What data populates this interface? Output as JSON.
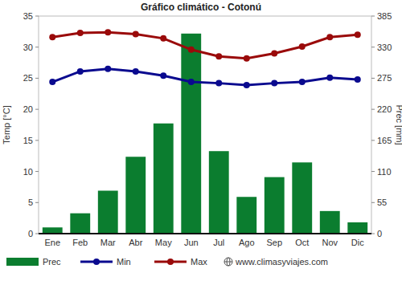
{
  "chart_data": {
    "type": "bar",
    "title": "Gráfico climático - Cotonú",
    "ylabel": "Temp [°C]",
    "y2label": "Prec [mm]",
    "annotations": [
      "www.climasyviajes.com"
    ],
    "categories": [
      "Ene",
      "Feb",
      "Mar",
      "Abr",
      "May",
      "Jun",
      "Jul",
      "Ago",
      "Sep",
      "Oct",
      "Nov",
      "Dic"
    ],
    "series": [
      {
        "name": "Prec",
        "type": "bar",
        "axis": "y2",
        "color": "#0b7d2f",
        "values": [
          11,
          36,
          76,
          136,
          195,
          354,
          146,
          65,
          100,
          126,
          40,
          20
        ]
      },
      {
        "name": "Min",
        "type": "line",
        "color": "#0a0a8f",
        "marker": "circle",
        "values": [
          24.4,
          26.1,
          26.5,
          26.1,
          25.4,
          24.4,
          24.2,
          23.9,
          24.2,
          24.4,
          25.1,
          24.8
        ]
      },
      {
        "name": "Max",
        "type": "line",
        "color": "#9a0a0a",
        "marker": "circle",
        "values": [
          31.6,
          32.3,
          32.4,
          32.1,
          31.4,
          29.6,
          28.5,
          28.2,
          29.0,
          30.1,
          31.6,
          32.0
        ]
      }
    ],
    "ylim": [
      0,
      35
    ],
    "yticks": [
      0,
      5,
      10,
      15,
      20,
      25,
      30,
      35
    ],
    "y2lim": [
      0,
      385
    ],
    "y2ticks": [
      0,
      55,
      110,
      165,
      220,
      275,
      330,
      385
    ],
    "grid": false,
    "legend": "bottom"
  }
}
